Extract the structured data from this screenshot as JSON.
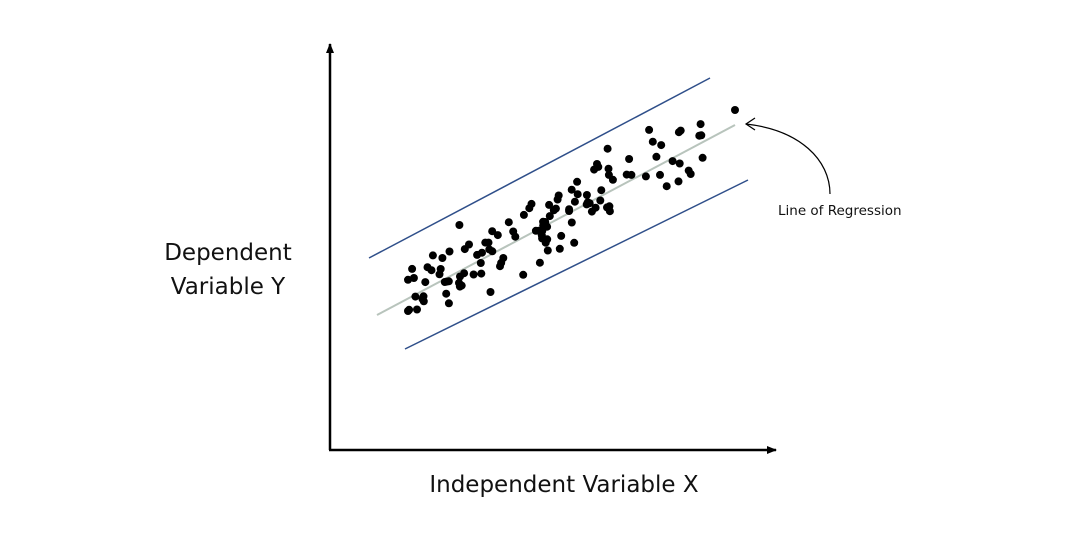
{
  "diagram": {
    "y_axis_label_line1": "Dependent",
    "y_axis_label_line2": "Variable Y",
    "x_axis_label": "Independent Variable X",
    "regression_label": "Line of Regression",
    "colors": {
      "axis": "#000000",
      "band": "#2f4f8a",
      "regression": "#b8c4bc",
      "point": "#000000"
    },
    "point_count": 120
  }
}
